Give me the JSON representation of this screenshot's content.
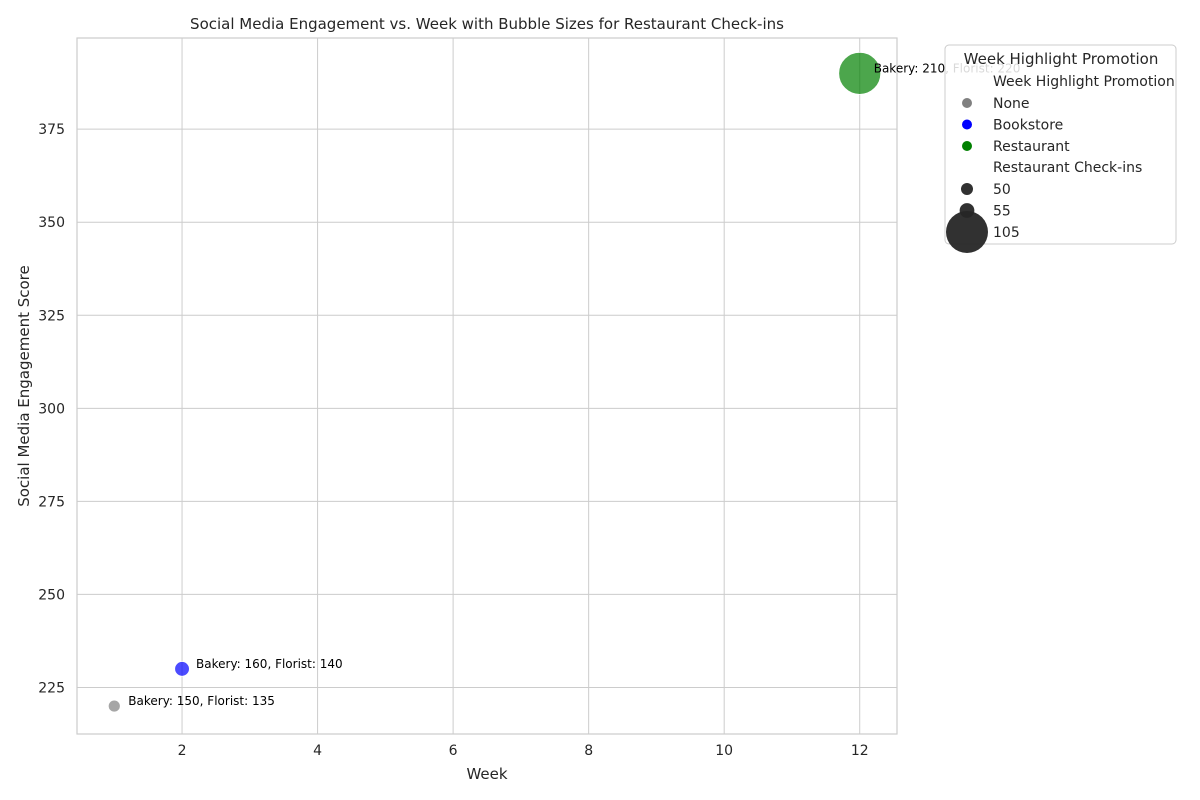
{
  "colors": {
    "None": "#808080",
    "Bookstore": "#0000ff",
    "Restaurant": "#008000",
    "grid": "#cccccc",
    "size_marker": "#262626"
  },
  "chart_data": {
    "type": "scatter",
    "title": "Social Media Engagement vs. Week with Bubble Sizes for Restaurant Check-ins",
    "xlabel": "Week",
    "ylabel": "Social Media Engagement Score",
    "xlim": [
      0.45,
      12.55
    ],
    "ylim": [
      212.5,
      399.5
    ],
    "xticks": [
      2,
      4,
      6,
      8,
      10,
      12
    ],
    "yticks": [
      225,
      250,
      275,
      300,
      325,
      350,
      375
    ],
    "grid": true,
    "points": [
      {
        "week": 1,
        "score": 220,
        "promotion": "None",
        "checkins": 50,
        "label": "Bakery: 150, Florist: 135"
      },
      {
        "week": 2,
        "score": 230,
        "promotion": "Bookstore",
        "checkins": 55,
        "label": "Bakery: 160, Florist: 140"
      },
      {
        "week": 12,
        "score": 390,
        "promotion": "Restaurant",
        "checkins": 105,
        "label": "Bakery: 210, Florist: 220"
      }
    ],
    "legend": {
      "position": "outside-upper-right",
      "title": "Week Highlight Promotion",
      "hue_title": "Week Highlight Promotion",
      "hue_entries": [
        "None",
        "Bookstore",
        "Restaurant"
      ],
      "size_title": "Restaurant Check-ins",
      "size_entries": [
        50,
        55,
        105
      ]
    }
  }
}
